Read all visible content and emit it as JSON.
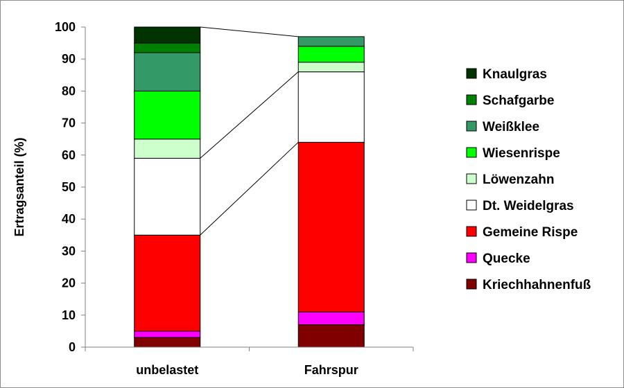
{
  "chart_data": {
    "type": "bar",
    "stacked": true,
    "title": "",
    "xlabel": "",
    "ylabel": "Ertragsanteil (%)",
    "ylim": [
      0,
      100
    ],
    "yticks": [
      0,
      10,
      20,
      30,
      40,
      50,
      60,
      70,
      80,
      90,
      100
    ],
    "grid": false,
    "legend_position": "right",
    "categories": [
      "unbelastet",
      "Fahrspur"
    ],
    "series": [
      {
        "name": "Kriechhahnenfuß",
        "color": "#800000",
        "values": [
          3,
          7
        ]
      },
      {
        "name": "Quecke",
        "color": "#ff00ff",
        "values": [
          2,
          4
        ]
      },
      {
        "name": "Gemeine Rispe",
        "color": "#ff0000",
        "values": [
          30,
          53
        ]
      },
      {
        "name": "Dt. Weidelgras",
        "color": "#ffffff",
        "values": [
          24,
          22
        ]
      },
      {
        "name": "Löwenzahn",
        "color": "#ccffcc",
        "values": [
          6,
          3
        ]
      },
      {
        "name": "Wiesenrispe",
        "color": "#00ff00",
        "values": [
          15,
          5
        ]
      },
      {
        "name": "Weißklee",
        "color": "#339966",
        "values": [
          12,
          3
        ]
      },
      {
        "name": "Schafgarbe",
        "color": "#008000",
        "values": [
          3,
          0
        ]
      },
      {
        "name": "Knaulgras",
        "color": "#003300",
        "values": [
          5,
          0
        ]
      }
    ],
    "connector_lines": [
      {
        "from_category": "unbelastet",
        "to_category": "Fahrspur",
        "level": "top"
      },
      {
        "from_category": "unbelastet",
        "to_category": "Fahrspur",
        "level": "after_series",
        "series": "Dt. Weidelgras"
      },
      {
        "from_category": "unbelastet",
        "to_category": "Fahrspur",
        "level": "after_series",
        "series": "Gemeine Rispe"
      }
    ],
    "legend_order": [
      "Knaulgras",
      "Schafgarbe",
      "Weißklee",
      "Wiesenrispe",
      "Löwenzahn",
      "Dt. Weidelgras",
      "Gemeine Rispe",
      "Quecke",
      "Kriechhahnenfuß"
    ]
  }
}
